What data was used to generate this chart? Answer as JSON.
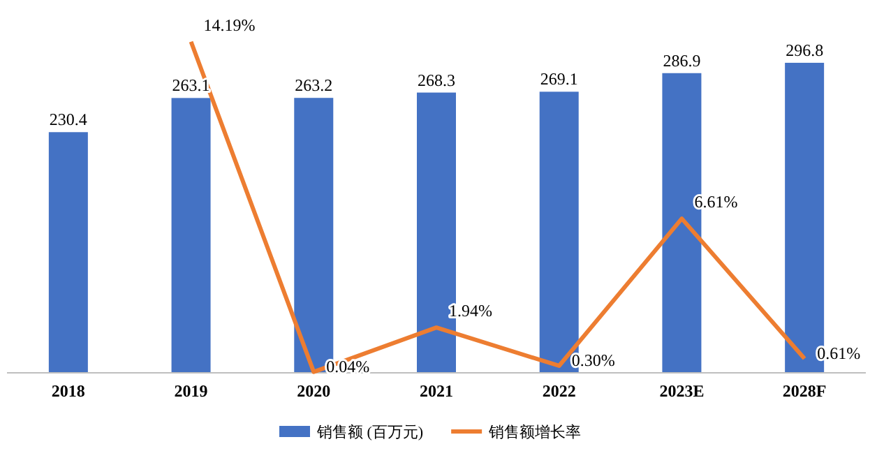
{
  "chart_data": {
    "type": "bar",
    "categories": [
      "2018",
      "2019",
      "2020",
      "2021",
      "2022",
      "2023E",
      "2028F"
    ],
    "legend": "bottom",
    "tick_labels": "x",
    "series": [
      {
        "name": "销售额 (百万元)",
        "color": "#4472c4",
        "values": [
          230.4,
          263.1,
          263.2,
          268.3,
          269.1,
          286.9,
          296.8
        ],
        "value_labels": [
          "230.4",
          "263.1",
          "263.2",
          "268.3",
          "269.1",
          "286.9",
          "296.8"
        ]
      },
      {
        "name": "销售额增长率",
        "type": "line",
        "axis": "y2",
        "color": "#ed7d31",
        "line_style": "solid",
        "marker": "none",
        "values": [
          null,
          14.19,
          0.04,
          1.94,
          0.3,
          6.61,
          0.61
        ],
        "value_labels": [
          null,
          "14.19%",
          "0.04%",
          "1.94%",
          "0.30%",
          "6.61%",
          "0.61%"
        ]
      }
    ]
  }
}
